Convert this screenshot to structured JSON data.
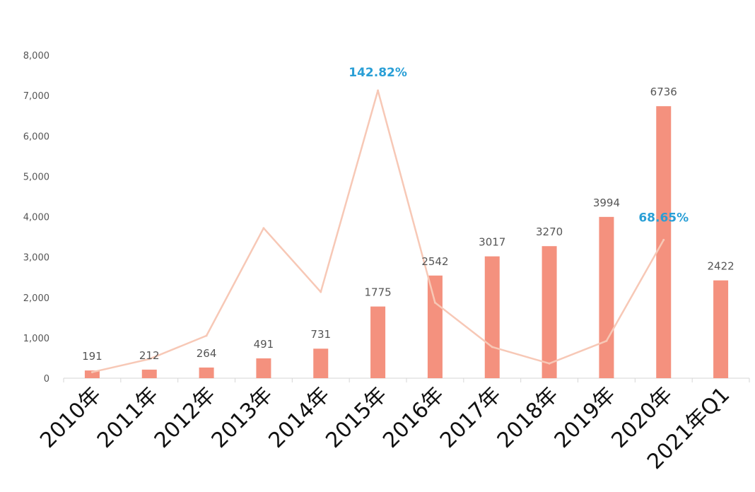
{
  "chart_data": {
    "type": "bar",
    "categories": [
      "2010年",
      "2011年",
      "2012年",
      "2013年",
      "2014年",
      "2015年",
      "2016年",
      "2017年",
      "2018年",
      "2019年",
      "2020年",
      "2021年Q1"
    ],
    "series": [
      {
        "type": "bar",
        "values": [
          191,
          212,
          264,
          491,
          731,
          1775,
          2542,
          3017,
          3270,
          3994,
          6736,
          2422
        ],
        "color": "#f4917e"
      },
      {
        "type": "line",
        "axis": "unlabeled",
        "color": "#f7c8b6",
        "values": [
          3,
          9.5,
          21.1,
          74.5,
          42.8,
          142.82,
          37.5,
          15.5,
          7.3,
          18.5,
          68.65,
          null
        ]
      }
    ],
    "yticks": [
      "0",
      "1,000",
      "2,000",
      "3,000",
      "4,000",
      "5,000",
      "6,000",
      "7,000",
      "8,000"
    ],
    "ylim": [
      0,
      8000
    ],
    "annotations": [
      {
        "text": "142.82%",
        "category": "2015年"
      },
      {
        "text": "68.65%",
        "category": "2020年"
      }
    ],
    "grid": false,
    "legend": "none"
  }
}
